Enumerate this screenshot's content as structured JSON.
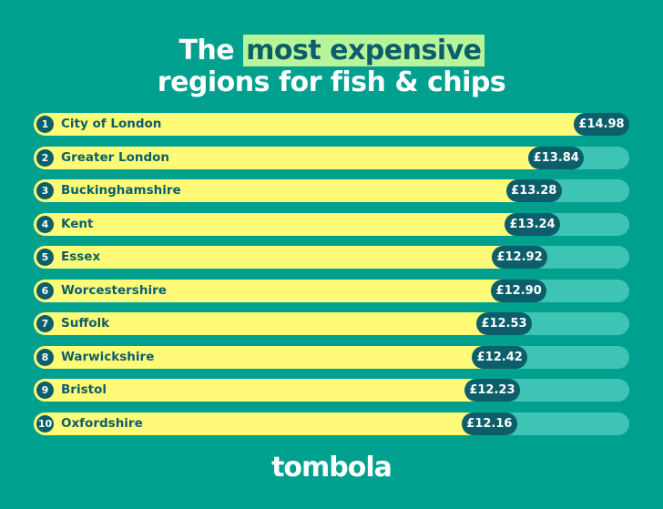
{
  "title": {
    "prefix": "The",
    "highlight": "most expensive",
    "line2": "regions for fish & chips"
  },
  "colors": {
    "background": "#00A08F",
    "bar": "#FFFB78",
    "track": "#3EC4B4",
    "accent": "#0B5E6A",
    "highlight": "#B8F59A"
  },
  "chart_data": {
    "type": "bar",
    "orientation": "horizontal",
    "categories": [
      "City of London",
      "Greater London",
      "Buckinghamshire",
      "Kent",
      "Essex",
      "Worcestershire",
      "Suffolk",
      "Warwickshire",
      "Bristol",
      "Oxfordshire"
    ],
    "ranks": [
      "1",
      "2",
      "3",
      "4",
      "5",
      "6",
      "7",
      "8",
      "9",
      "10"
    ],
    "values": [
      14.98,
      13.84,
      13.28,
      13.24,
      12.92,
      12.9,
      12.53,
      12.42,
      12.23,
      12.16
    ],
    "labels": [
      "£14.98",
      "£13.84",
      "£13.28",
      "£13.24",
      "£12.92",
      "£12.90",
      "£12.53",
      "£12.42",
      "£12.23",
      "£12.16"
    ],
    "xlim": [
      0,
      14.98
    ]
  },
  "logo": "tombola"
}
